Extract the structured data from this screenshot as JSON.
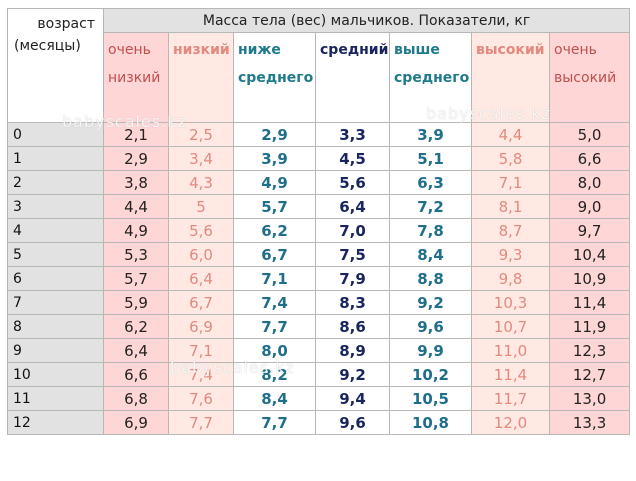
{
  "table": {
    "corner_line1": "возраст",
    "corner_line2": "(месяцы)",
    "title": "Масса тела (вес) мальчиков.  Показатели, кг",
    "headers": [
      {
        "line1": "очень",
        "line2": "низкий"
      },
      {
        "line1": "низкий",
        "line2": ""
      },
      {
        "line1": "ниже",
        "line2": "среднего"
      },
      {
        "line1": "средний",
        "line2": ""
      },
      {
        "line1": "выше",
        "line2": "среднего"
      },
      {
        "line1": "высокий",
        "line2": ""
      },
      {
        "line1": "очень",
        "line2": "высокий"
      }
    ],
    "rows": [
      {
        "age": "0",
        "v": [
          "2,1",
          "2,5",
          "2,9",
          "3,3",
          "3,9",
          "4,4",
          "5,0"
        ]
      },
      {
        "age": "1",
        "v": [
          "2,9",
          "3,4",
          "3,9",
          "4,5",
          "5,1",
          "5,8",
          "6,6"
        ]
      },
      {
        "age": "2",
        "v": [
          "3,8",
          "4,3",
          "4,9",
          "5,6",
          "6,3",
          "7,1",
          "8,0"
        ]
      },
      {
        "age": "3",
        "v": [
          "4,4",
          "5",
          "5,7",
          "6,4",
          "7,2",
          "8,1",
          "9,0"
        ]
      },
      {
        "age": "4",
        "v": [
          "4,9",
          "5,6",
          "6,2",
          "7,0",
          "7,8",
          "8,7",
          "9,7"
        ]
      },
      {
        "age": "5",
        "v": [
          "5,3",
          "6,0",
          "6,7",
          "7,5",
          "8,4",
          "9,3",
          "10,4"
        ]
      },
      {
        "age": "6",
        "v": [
          "5,7",
          "6,4",
          "7,1",
          "7,9",
          "8,8",
          "9,8",
          "10,9"
        ]
      },
      {
        "age": "7",
        "v": [
          "5,9",
          "6,7",
          "7,4",
          "8,3",
          "9,2",
          "10,3",
          "11,4"
        ]
      },
      {
        "age": "8",
        "v": [
          "6,2",
          "6,9",
          "7,7",
          "8,6",
          "9,6",
          "10,7",
          "11,9"
        ]
      },
      {
        "age": "9",
        "v": [
          "6,4",
          "7,1",
          "8,0",
          "8,9",
          "9,9",
          "11,0",
          "12,3"
        ]
      },
      {
        "age": "10",
        "v": [
          "6,6",
          "7,4",
          "8,2",
          "9,2",
          "10,2",
          "11,4",
          "12,7"
        ]
      },
      {
        "age": "11",
        "v": [
          "6,8",
          "7,6",
          "8,4",
          "9,4",
          "10,5",
          "11,7",
          "13,0"
        ]
      },
      {
        "age": "12",
        "v": [
          "6,9",
          "7,7",
          "7,7",
          "9,6",
          "10,8",
          "12,0",
          "13,3"
        ]
      }
    ]
  },
  "watermark": "babyscales.kz"
}
